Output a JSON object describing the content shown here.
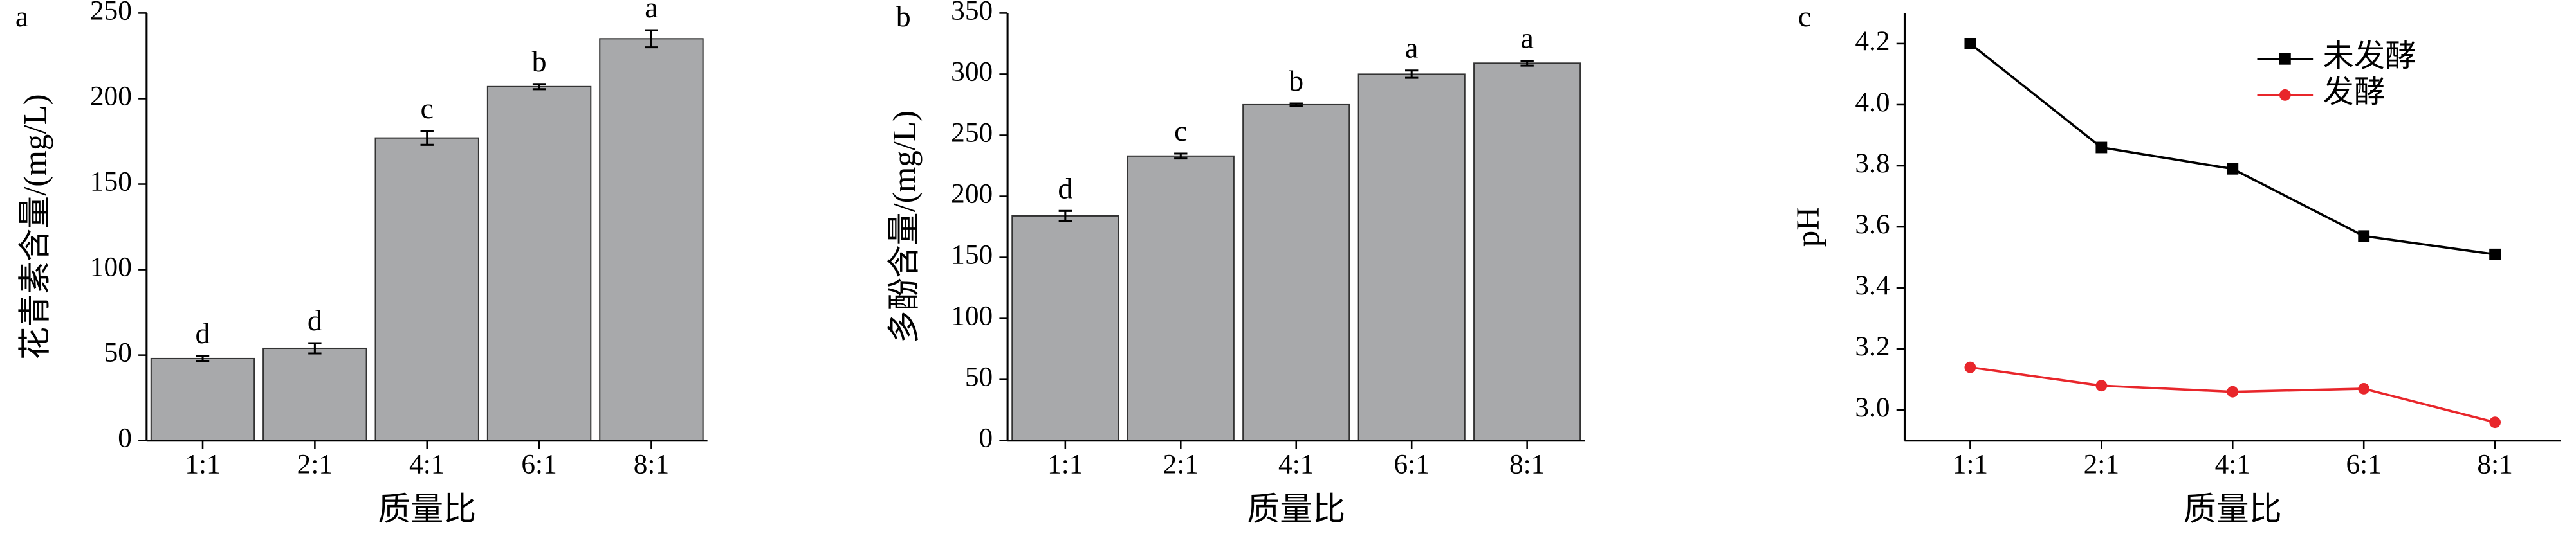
{
  "chart_data": [
    {
      "type": "bar",
      "panel_label": "a",
      "ylabel": "花青素含量/(mg/L)",
      "xlabel": "质量比",
      "categories": [
        "1:1",
        "2:1",
        "4:1",
        "6:1",
        "8:1"
      ],
      "values": [
        48,
        54,
        177,
        207,
        235
      ],
      "errors": [
        1.5,
        3,
        4,
        1.5,
        5
      ],
      "significance": [
        "d",
        "d",
        "c",
        "b",
        "a"
      ],
      "color": "#a8a9ab",
      "ylim": [
        0,
        250
      ],
      "yticks": [
        0,
        50,
        100,
        150,
        200,
        250
      ]
    },
    {
      "type": "bar",
      "panel_label": "b",
      "ylabel": "多酚含量/(mg/L)",
      "xlabel": "质量比",
      "categories": [
        "1:1",
        "2:1",
        "4:1",
        "6:1",
        "8:1"
      ],
      "values": [
        184,
        233,
        275,
        300,
        309
      ],
      "errors": [
        4,
        2,
        1,
        3,
        2
      ],
      "significance": [
        "d",
        "c",
        "b",
        "a",
        "a"
      ],
      "color": "#a8a9ab",
      "ylim": [
        0,
        350
      ],
      "yticks": [
        0,
        50,
        100,
        150,
        200,
        250,
        300,
        350
      ]
    },
    {
      "type": "line",
      "panel_label": "c",
      "ylabel": "pH",
      "xlabel": "质量比",
      "categories": [
        "1:1",
        "2:1",
        "4:1",
        "6:1",
        "8:1"
      ],
      "series": [
        {
          "name": "未发酵",
          "color": "#000000",
          "marker": "square",
          "values": [
            4.2,
            3.86,
            3.79,
            3.57,
            3.51
          ]
        },
        {
          "name": "发酵",
          "color": "#e8262b",
          "marker": "circle",
          "values": [
            3.14,
            3.08,
            3.06,
            3.07,
            2.96
          ]
        }
      ],
      "ylim": [
        2.9,
        4.3
      ],
      "yticks": [
        {
          "value": 3,
          "label": "3.0"
        },
        3.2,
        3.4,
        3.6,
        3.8,
        {
          "value": 4,
          "label": "4.0"
        },
        4.2
      ]
    }
  ]
}
